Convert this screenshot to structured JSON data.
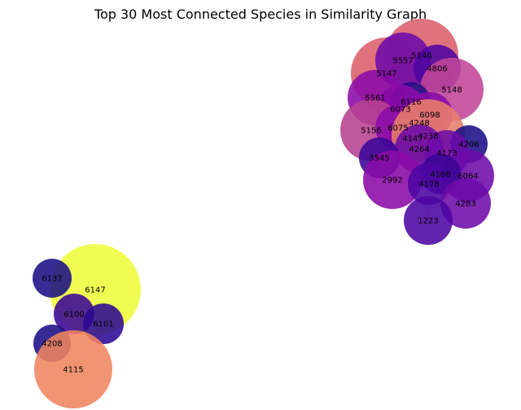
{
  "title": "Top 30 Most Connected Species in Similarity Graph",
  "graph": {
    "nodes": [
      {
        "id": "5146",
        "color": "#dc5f6b"
      },
      {
        "id": "5147",
        "color": "#dc5f6b"
      },
      {
        "id": "5557",
        "color": "#6c0aa8"
      },
      {
        "id": "4806",
        "color": "#4c05a2"
      },
      {
        "id": "5148",
        "color": "#c24697"
      },
      {
        "id": "5561",
        "color": "#8a0aa7"
      },
      {
        "id": "6116",
        "color": "#1f0c8a"
      },
      {
        "id": "6073",
        "color": "#8a0aa7"
      },
      {
        "id": "6098",
        "color": "#8a0aa7"
      },
      {
        "id": "4248",
        "color": "#8a0aa7"
      },
      {
        "id": "5156",
        "color": "#b6418f"
      },
      {
        "id": "6075",
        "color": "#8a0aa7"
      },
      {
        "id": "4147",
        "color": "#8a0aa7"
      },
      {
        "id": "4238",
        "color": "#e8806b"
      },
      {
        "id": "4206",
        "color": "#1a0f86"
      },
      {
        "id": "4264",
        "color": "#6c0aa8"
      },
      {
        "id": "4173",
        "color": "#6c0aa8"
      },
      {
        "id": "3545",
        "color": "#3a0696"
      },
      {
        "id": "6064",
        "color": "#6c0aa8"
      },
      {
        "id": "4188",
        "color": "#3a0696"
      },
      {
        "id": "2992",
        "color": "#8a0aa7"
      },
      {
        "id": "4178",
        "color": "#4c05a2"
      },
      {
        "id": "4283",
        "color": "#6c0aa8"
      },
      {
        "id": "1223",
        "color": "#4c05a2"
      },
      {
        "id": "6147",
        "color": "#eefc3a"
      },
      {
        "id": "6137",
        "color": "#1a0f86"
      },
      {
        "id": "6100",
        "color": "#3a0696"
      },
      {
        "id": "6101",
        "color": "#2b0994"
      },
      {
        "id": "4208",
        "color": "#1a0f86"
      },
      {
        "id": "4115",
        "color": "#ef855f"
      }
    ]
  }
}
